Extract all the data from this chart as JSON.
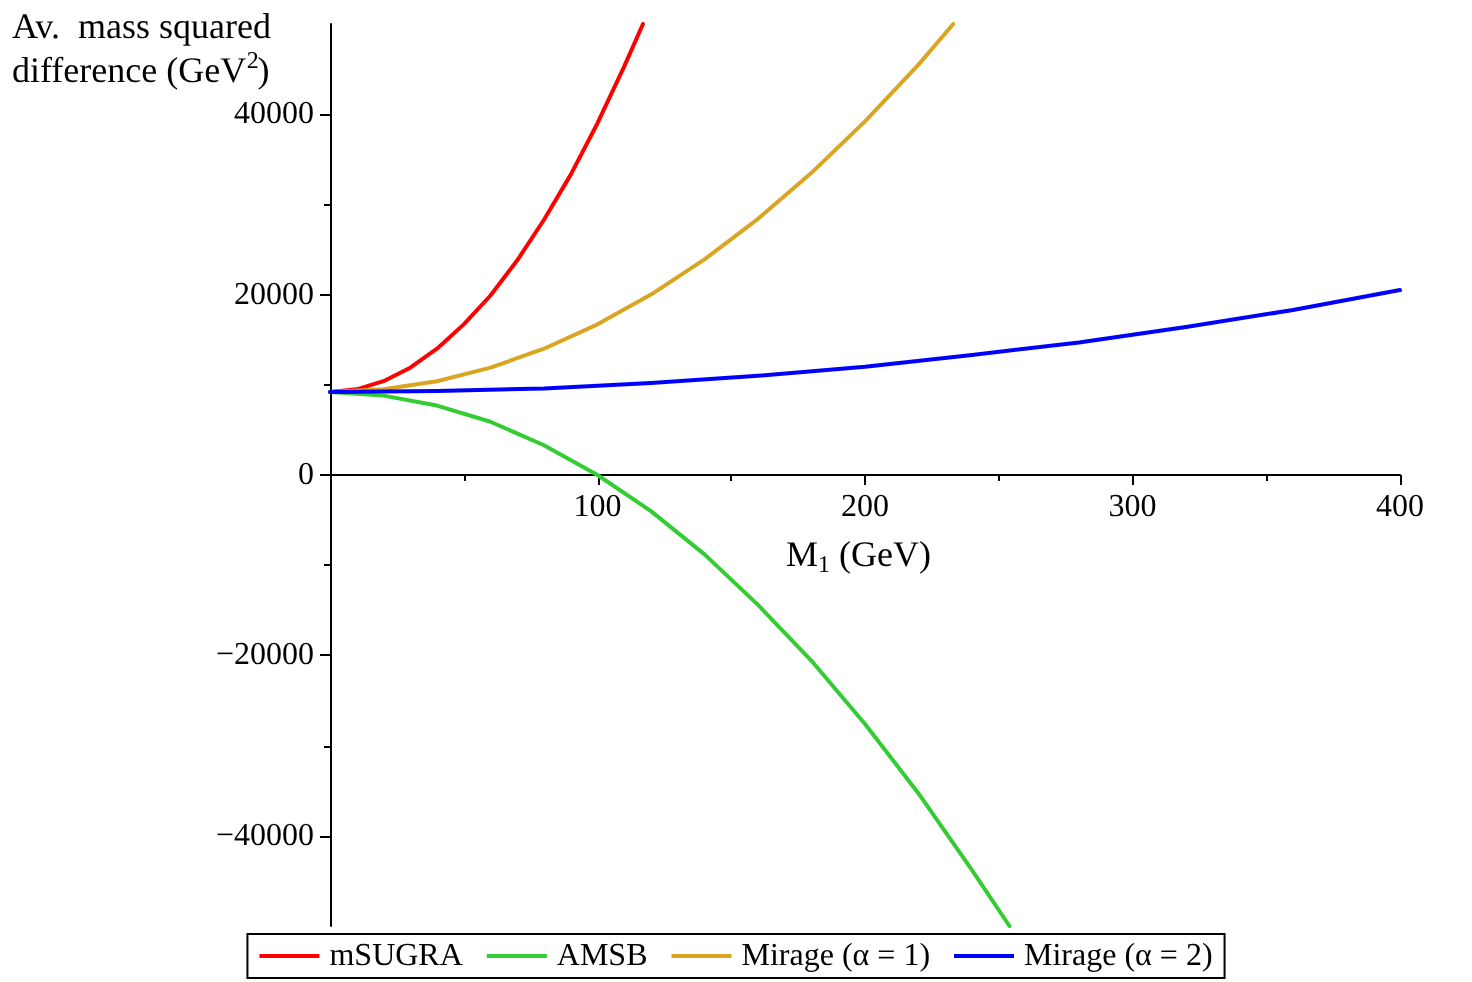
{
  "chart_data": {
    "type": "line",
    "xlabel": "M$_{1}$ (GeV)",
    "ylabel": "Av.  mass squared difference (GeV$^{2}$)",
    "xlim": [
      0,
      400
    ],
    "xticks": [
      100,
      200,
      300,
      400
    ],
    "ylim": [
      -50000,
      50000
    ],
    "yticks": [
      -40000,
      -20000,
      0,
      20000,
      40000
    ],
    "grid": false,
    "legend": "bottom",
    "marker": "none",
    "line_style": "solid",
    "series": [
      {
        "name": "mSUGRA",
        "color": "#ff0000",
        "x": [
          0,
          10,
          20,
          30,
          40,
          50,
          60,
          70,
          80,
          90,
          100,
          110,
          117
        ],
        "values": [
          9200,
          9500,
          10400,
          11900,
          14000,
          16700,
          19900,
          23800,
          28300,
          33300,
          39000,
          45300,
          50000
        ]
      },
      {
        "name": "AMSB",
        "color": "#33cc33",
        "x": [
          0,
          20,
          40,
          60,
          80,
          100,
          120,
          140,
          160,
          180,
          200,
          220,
          240,
          254
        ],
        "values": [
          9200,
          8800,
          7700,
          5900,
          3300,
          0,
          -4000,
          -8800,
          -14400,
          -20600,
          -27600,
          -35300,
          -43800,
          -50000
        ]
      },
      {
        "name": "Mirage (α = 1)",
        "color": "#daa520",
        "x": [
          0,
          20,
          40,
          60,
          80,
          100,
          120,
          140,
          160,
          180,
          200,
          220,
          233
        ],
        "values": [
          9200,
          9500,
          10400,
          11900,
          14000,
          16700,
          20000,
          23900,
          28400,
          33500,
          39200,
          45500,
          50000
        ]
      },
      {
        "name": "Mirage (α = 2)",
        "color": "#0000ff",
        "x": [
          0,
          40,
          80,
          120,
          160,
          200,
          240,
          280,
          320,
          360,
          400
        ],
        "values": [
          9200,
          9300,
          9600,
          10200,
          11000,
          12000,
          13300,
          14700,
          16400,
          18300,
          20500
        ]
      }
    ]
  }
}
